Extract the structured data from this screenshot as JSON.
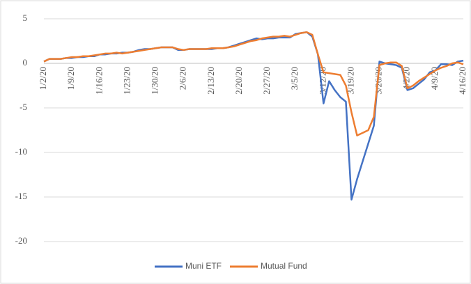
{
  "chart_data": {
    "type": "line",
    "categories": [
      "1/2/20",
      null,
      null,
      null,
      null,
      "1/9/20",
      null,
      null,
      null,
      null,
      "1/16/20",
      null,
      null,
      null,
      null,
      "1/23/20",
      null,
      null,
      null,
      null,
      "1/30/20",
      null,
      null,
      null,
      null,
      "2/6/20",
      null,
      null,
      null,
      null,
      "2/13/20",
      null,
      null,
      null,
      null,
      "2/20/20",
      null,
      null,
      null,
      null,
      "2/27/20",
      null,
      null,
      null,
      null,
      "3/5/20",
      null,
      null,
      null,
      null,
      "3/12/20",
      null,
      null,
      null,
      null,
      "3/19/20",
      null,
      null,
      null,
      null,
      "3/26/20",
      null,
      null,
      null,
      null,
      "4/2/20",
      null,
      null,
      null,
      null,
      "4/9/20",
      null,
      null,
      null,
      null,
      "4/16/20"
    ],
    "series": [
      {
        "name": "Muni ETF",
        "color": "#4472c4",
        "values": [
          0.2,
          0.5,
          0.5,
          0.5,
          0.6,
          0.6,
          0.7,
          0.7,
          0.8,
          0.8,
          1.0,
          1.0,
          1.1,
          1.1,
          1.2,
          1.2,
          1.3,
          1.5,
          1.6,
          1.6,
          1.7,
          1.8,
          1.8,
          1.8,
          1.5,
          1.5,
          1.6,
          1.6,
          1.6,
          1.6,
          1.6,
          1.7,
          1.7,
          1.8,
          2.0,
          2.2,
          2.4,
          2.6,
          2.8,
          2.7,
          2.8,
          2.8,
          2.9,
          2.9,
          2.9,
          3.3,
          3.4,
          3.5,
          3.0,
          1.0,
          -4.5,
          -2.0,
          -3.0,
          -3.8,
          -4.3,
          -15.3,
          -13,
          -11,
          -9,
          -7,
          0.2,
          0.0,
          -0.1,
          -0.2,
          -0.5,
          -3.0,
          -2.8,
          -2.3,
          -1.8,
          -1.0,
          -0.8,
          -0.1,
          -0.1,
          -0.2,
          0.2,
          0.3
        ]
      },
      {
        "name": "Mutual Fund",
        "color": "#ed7d31",
        "values": [
          0.2,
          0.5,
          0.5,
          0.5,
          0.6,
          0.7,
          0.7,
          0.8,
          0.8,
          0.9,
          1.0,
          1.1,
          1.1,
          1.2,
          1.1,
          1.2,
          1.3,
          1.4,
          1.5,
          1.6,
          1.7,
          1.8,
          1.8,
          1.8,
          1.6,
          1.5,
          1.6,
          1.6,
          1.6,
          1.6,
          1.7,
          1.7,
          1.7,
          1.8,
          1.9,
          2.1,
          2.3,
          2.5,
          2.6,
          2.8,
          2.9,
          3.0,
          3.0,
          3.1,
          3.0,
          3.2,
          3.4,
          3.5,
          3.2,
          1.0,
          -1.0,
          -1.1,
          -1.2,
          -1.3,
          -2.5,
          -5.5,
          -8.1,
          -7.8,
          -7.5,
          -6.0,
          -0.2,
          0.0,
          0.1,
          0.1,
          -0.3,
          -2.8,
          -2.5,
          -2.0,
          -1.6,
          -1.2,
          -0.8,
          -0.5,
          -0.3,
          0.0,
          0.1,
          -0.1
        ]
      }
    ],
    "ylim": [
      -20,
      5
    ],
    "yticks": [
      -20,
      -15,
      -10,
      -5,
      0,
      5
    ],
    "grid": true
  }
}
